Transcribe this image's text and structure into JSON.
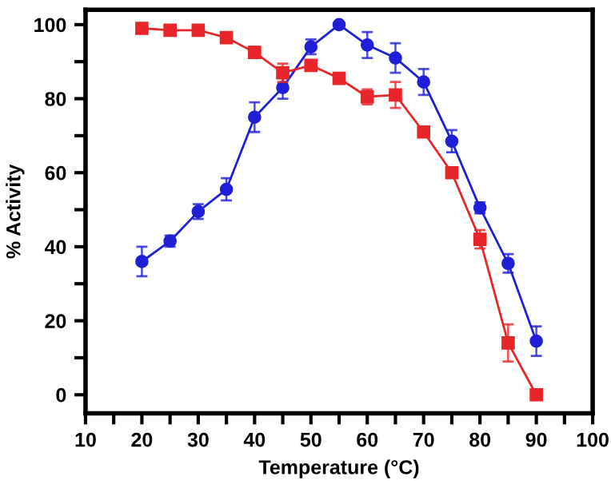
{
  "chart_data": {
    "type": "line",
    "xlabel": "Temperature (°C)",
    "ylabel": "% Activity",
    "x": [
      20,
      25,
      30,
      35,
      40,
      45,
      50,
      55,
      60,
      65,
      70,
      75,
      80,
      85,
      90
    ],
    "series": [
      {
        "color": "#1f1fd6",
        "marker": "circle",
        "values": [
          36,
          41.5,
          49.5,
          55.5,
          75,
          83,
          94,
          100,
          94.5,
          91,
          84.5,
          68.5,
          50.5,
          35.5,
          14.5
        ],
        "errors": [
          4,
          1.5,
          2,
          3,
          4,
          3,
          2,
          null,
          3.5,
          4,
          3.5,
          3,
          1.5,
          2.5,
          4
        ]
      },
      {
        "color": "#e8262a",
        "marker": "square",
        "values": [
          99,
          98.5,
          98.5,
          96.5,
          92.5,
          87,
          89,
          85.5,
          80.5,
          81,
          71,
          60,
          42,
          14,
          0
        ],
        "errors": [
          null,
          null,
          1,
          1,
          1.5,
          2.5,
          null,
          1,
          2,
          3.5,
          null,
          null,
          2.5,
          5,
          null
        ]
      }
    ],
    "xlim": [
      10,
      100
    ],
    "xticks": [
      10,
      {
        "value": 15,
        "label": null
      },
      20,
      {
        "value": 25,
        "label": null
      },
      30,
      {
        "value": 35,
        "label": null
      },
      40,
      {
        "value": 45,
        "label": null
      },
      50,
      {
        "value": 55,
        "label": null
      },
      60,
      {
        "value": 65,
        "label": null
      },
      70,
      {
        "value": 75,
        "label": null
      },
      80,
      {
        "value": 85,
        "label": null
      },
      90,
      {
        "value": 95,
        "label": null
      },
      100
    ],
    "ylim": [
      -5,
      104
    ],
    "yticks": [
      0,
      {
        "value": 10,
        "label": null
      },
      20,
      {
        "value": 30,
        "label": null
      },
      40,
      {
        "value": 50,
        "label": null
      },
      60,
      {
        "value": 70,
        "label": null
      },
      80,
      {
        "value": 90,
        "label": null
      },
      100
    ],
    "grid": false,
    "legend": false,
    "line_style": "solid"
  }
}
